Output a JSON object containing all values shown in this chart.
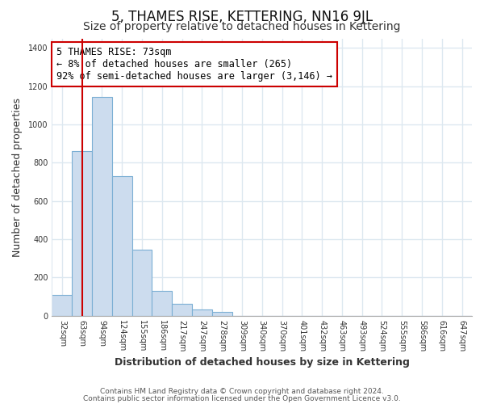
{
  "title": "5, THAMES RISE, KETTERING, NN16 9JL",
  "subtitle": "Size of property relative to detached houses in Kettering",
  "xlabel": "Distribution of detached houses by size in Kettering",
  "ylabel": "Number of detached properties",
  "categories": [
    "32sqm",
    "63sqm",
    "94sqm",
    "124sqm",
    "155sqm",
    "186sqm",
    "217sqm",
    "247sqm",
    "278sqm",
    "309sqm",
    "340sqm",
    "370sqm",
    "401sqm",
    "432sqm",
    "463sqm",
    "493sqm",
    "524sqm",
    "555sqm",
    "586sqm",
    "616sqm",
    "647sqm"
  ],
  "values": [
    107,
    862,
    1143,
    730,
    345,
    130,
    62,
    32,
    20,
    0,
    0,
    0,
    0,
    0,
    0,
    0,
    0,
    0,
    0,
    0,
    0
  ],
  "bar_color": "#ccdcee",
  "bar_edge_color": "#7bafd4",
  "vline_x_index": 1,
  "vline_color": "#cc0000",
  "annotation_text": "5 THAMES RISE: 73sqm\n← 8% of detached houses are smaller (265)\n92% of semi-detached houses are larger (3,146) →",
  "annotation_box_color": "#ffffff",
  "annotation_box_edge_color": "#cc0000",
  "ylim": [
    0,
    1450
  ],
  "yticks": [
    0,
    200,
    400,
    600,
    800,
    1000,
    1200,
    1400
  ],
  "footer_line1": "Contains HM Land Registry data © Crown copyright and database right 2024.",
  "footer_line2": "Contains public sector information licensed under the Open Government Licence v3.0.",
  "background_color": "#ffffff",
  "plot_bg_color": "#ffffff",
  "grid_color": "#dde8f0",
  "title_fontsize": 12,
  "subtitle_fontsize": 10,
  "axis_label_fontsize": 9,
  "tick_fontsize": 7,
  "footer_fontsize": 6.5,
  "annotation_fontsize": 8.5
}
